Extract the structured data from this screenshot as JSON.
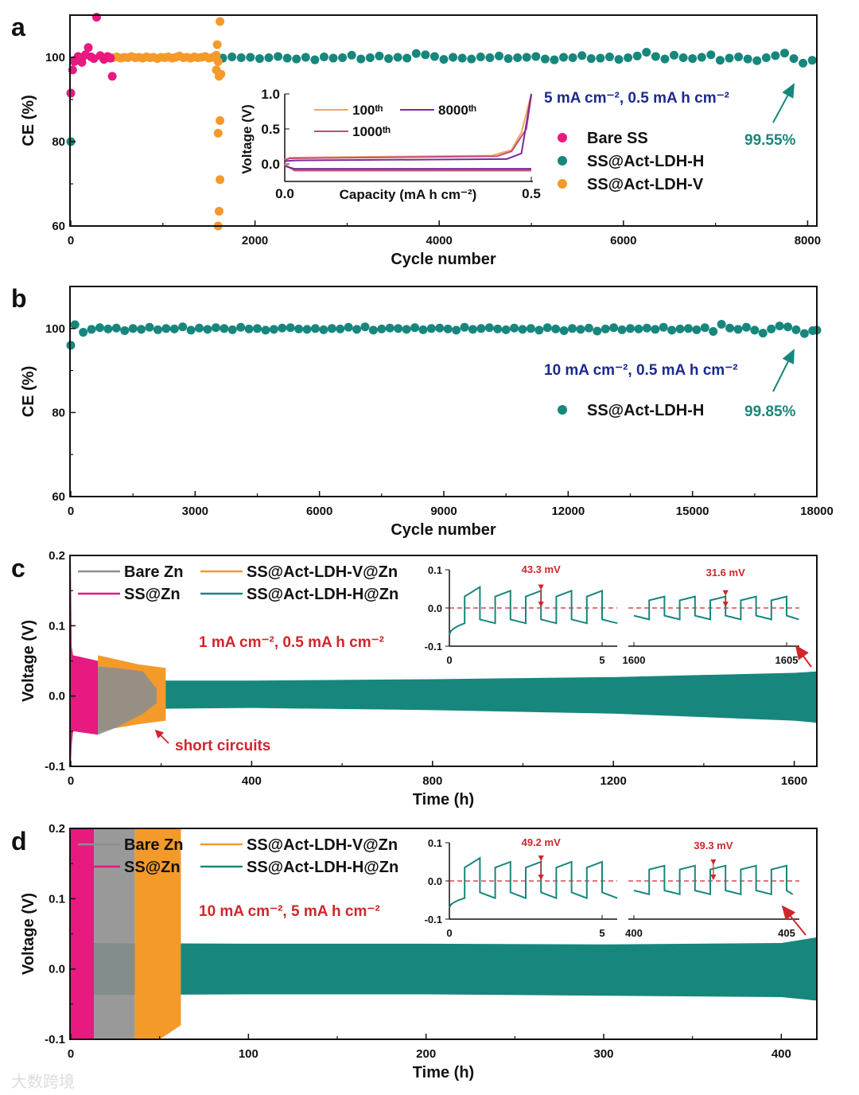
{
  "colors": {
    "teal": "#17877d",
    "pink": "#e8197f",
    "orange": "#f39a2b",
    "gray": "#8e8e8e",
    "navy": "#1b2a8c",
    "red": "#d0262c",
    "purple": "#7b2a9c",
    "rose": "#c0507a",
    "lightorange": "#f0a860"
  },
  "watermark": "大数跨境",
  "chart_data": [
    {
      "panel": "a",
      "type": "scatter",
      "xlabel": "Cycle number",
      "ylabel": "CE (%)",
      "xlim": [
        0,
        8100
      ],
      "ylim": [
        60,
        110
      ],
      "xticks": [
        0,
        2000,
        4000,
        6000,
        8000
      ],
      "yticks": [
        60,
        80,
        100
      ],
      "condition": "5 mA cm⁻², 0.5 mA h cm⁻²",
      "value_label": "99.55%",
      "series": [
        {
          "name": "SS@Act-LDH-H",
          "color": "teal",
          "points": [
            [
              0,
              80
            ],
            [
              30,
              99.2
            ],
            [
              120,
              99.6
            ]
          ],
          "x_start": 1650,
          "x_step": 100,
          "y": [
            99.8,
            100.1,
            99.9,
            100.0,
            99.7,
            99.9,
            100.2,
            99.8,
            99.6,
            100.0,
            99.4,
            100.1,
            99.8,
            99.9,
            100.5,
            99.6,
            99.9,
            100.3,
            99.7,
            100.0,
            99.8,
            100.9,
            100.6,
            100.2,
            99.5,
            100.0,
            99.8,
            99.6,
            100.1,
            99.9,
            100.3,
            99.7,
            99.9,
            100.0,
            100.2,
            99.6,
            99.4,
            100.0,
            99.9,
            100.4,
            99.7,
            99.8,
            100.1,
            99.5,
            99.9,
            100.3,
            101.2,
            100.2,
            99.6,
            100.5,
            99.9,
            99.7,
            100.0,
            100.6,
            99.3,
            99.8,
            100.1,
            99.6,
            99.2,
            99.9,
            100.4,
            101.0,
            99.7,
            98.6,
            99.3
          ]
        },
        {
          "name": "SS@Act-LDH-V",
          "color": "orange",
          "points": [
            [
              1590,
              103
            ],
            [
              1620,
              108.5
            ],
            [
              1600,
              99
            ],
            [
              1580,
              97
            ],
            [
              1610,
              95.5
            ],
            [
              1630,
              96
            ],
            [
              1620,
              85
            ],
            [
              1600,
              82
            ],
            [
              1620,
              71
            ],
            [
              1610,
              63.5
            ],
            [
              1600,
              60
            ]
          ],
          "x_start": 380,
          "x_step": 40,
          "y": [
            99.8,
            100.0,
            99.9,
            100.1,
            99.8,
            100.0,
            99.9,
            100.2,
            99.9,
            100.0,
            99.8,
            100.1,
            99.9,
            100.0,
            99.7,
            100.0,
            99.9,
            100.1,
            99.8,
            100.0,
            100.3,
            99.9,
            100.0,
            99.8,
            100.1,
            99.9,
            100.0,
            100.2,
            99.8,
            100.0,
            100.5
          ]
        },
        {
          "name": "Bare SS",
          "color": "pink",
          "points": [
            [
              0,
              91.5
            ],
            [
              20,
              97
            ],
            [
              40,
              99
            ],
            [
              80,
              100.2
            ],
            [
              120,
              98.8
            ],
            [
              160,
              100.6
            ],
            [
              190,
              102.3
            ],
            [
              220,
              100.1
            ],
            [
              250,
              99.7
            ],
            [
              280,
              109.5
            ],
            [
              320,
              100.4
            ],
            [
              360,
              99.5
            ],
            [
              400,
              100.2
            ],
            [
              430,
              99.8
            ],
            [
              450,
              95.5
            ]
          ],
          "x_start": 0,
          "x_step": 0,
          "y": []
        }
      ],
      "legend_order": [
        2,
        0,
        1
      ],
      "inset": {
        "xlabel": "Capacity (mA h cm⁻²)",
        "ylabel": "Voltage (V)",
        "xlim": [
          0,
          0.5
        ],
        "ylim": [
          -0.25,
          1.0
        ],
        "xticks": [
          "0.0",
          "0.5"
        ],
        "yticks": [
          "0.0",
          "0.5",
          "1.0"
        ],
        "series": [
          {
            "name": "100ᵗʰ",
            "color": "lightorange",
            "charge": {
              "x": [
                0,
                0.01,
                0.42,
                0.46,
                0.48,
                0.5
              ],
              "y": [
                0.06,
                0.09,
                0.12,
                0.2,
                0.45,
                1.0
              ]
            },
            "discharge": {
              "x": [
                0,
                0.02,
                0.5
              ],
              "y": [
                0.0,
                -0.1,
                -0.1
              ]
            }
          },
          {
            "name": "1000ᵗʰ",
            "color": "rose",
            "charge": {
              "x": [
                0,
                0.01,
                0.43,
                0.46,
                0.49,
                0.5
              ],
              "y": [
                0.05,
                0.08,
                0.11,
                0.18,
                0.5,
                0.98
              ]
            },
            "discharge": {
              "x": [
                0,
                0.02,
                0.5
              ],
              "y": [
                -0.02,
                -0.09,
                -0.09
              ]
            }
          },
          {
            "name": "8000ᵗʰ",
            "color": "purple",
            "charge": {
              "x": [
                0,
                0.02,
                0.45,
                0.48,
                0.5
              ],
              "y": [
                0.04,
                0.05,
                0.07,
                0.15,
                1.0
              ]
            },
            "discharge": {
              "x": [
                0,
                0.02,
                0.5
              ],
              "y": [
                -0.03,
                -0.07,
                -0.07
              ]
            }
          }
        ]
      }
    },
    {
      "panel": "b",
      "type": "scatter",
      "xlabel": "Cycle number",
      "ylabel": "CE (%)",
      "xlim": [
        0,
        18000
      ],
      "ylim": [
        60,
        110
      ],
      "xticks": [
        0,
        3000,
        6000,
        9000,
        12000,
        15000,
        18000
      ],
      "yticks": [
        60,
        80,
        100
      ],
      "condition": "10 mA cm⁻², 0.5 mA h cm⁻²",
      "value_label": "99.85%",
      "series": [
        {
          "name": "SS@Act-LDH-H",
          "color": "teal",
          "points": [
            [
              0,
              96
            ],
            [
              18000,
              99.6
            ]
          ],
          "x_start": 100,
          "x_step": 200,
          "y": [
            100.9,
            99.1,
            99.8,
            100.2,
            99.9,
            100.1,
            99.5,
            100.0,
            99.8,
            100.3,
            99.7,
            100.0,
            99.9,
            100.4,
            99.6,
            100.1,
            99.8,
            100.2,
            100.0,
            99.7,
            100.3,
            99.9,
            100.0,
            99.6,
            99.8,
            100.1,
            100.2,
            99.9,
            99.8,
            100.0,
            99.7,
            100.0,
            99.9,
            100.3,
            99.8,
            100.4,
            99.6,
            99.9,
            100.1,
            100.0,
            99.8,
            100.2,
            99.7,
            100.0,
            100.1,
            99.9,
            99.6,
            100.3,
            99.8,
            100.0,
            100.2,
            99.9,
            99.7,
            100.1,
            99.8,
            100.0,
            99.6,
            100.2,
            99.9,
            99.5,
            100.0,
            99.8,
            100.1,
            99.4,
            99.9,
            100.2,
            99.7,
            100.0,
            99.9,
            100.1,
            99.8,
            100.3,
            99.6,
            99.9,
            100.0,
            99.7,
            100.2,
            99.3,
            101.0,
            100.1,
            99.8,
            100.3,
            99.6,
            98.9,
            99.9,
            100.6,
            100.4,
            99.7,
            98.8,
            99.5
          ]
        }
      ],
      "legend_order": [
        0
      ]
    },
    {
      "panel": "c",
      "type": "area",
      "xlabel": "Time (h)",
      "ylabel": "Voltage (V)",
      "xlim": [
        0,
        1650
      ],
      "ylim": [
        -0.1,
        0.2
      ],
      "xticks": [
        0,
        400,
        800,
        1200,
        1600
      ],
      "yticks": [
        "-0.1",
        "0.0",
        "0.1",
        "0.2"
      ],
      "condition": "1 mA cm⁻², 0.5 mA h cm⁻²",
      "annotation": "short circuits",
      "series": [
        {
          "name": "SS@Act-LDH-H@Zn",
          "color": "teal",
          "x": [
            0,
            200,
            400,
            800,
            1200,
            1600,
            1650
          ],
          "upper": [
            0.025,
            0.022,
            0.022,
            0.024,
            0.027,
            0.033,
            0.035
          ],
          "lower": [
            -0.025,
            -0.018,
            -0.017,
            -0.02,
            -0.025,
            -0.035,
            -0.038
          ]
        },
        {
          "name": "SS@Act-LDH-V@Zn",
          "color": "orange",
          "x": [
            60,
            150,
            210
          ],
          "upper": [
            0.058,
            0.045,
            0.04
          ],
          "lower": [
            -0.05,
            -0.04,
            -0.035
          ]
        },
        {
          "name": "Bare Zn",
          "color": "gray",
          "x": [
            60,
            100,
            160,
            190
          ],
          "upper": [
            0.042,
            0.04,
            0.035,
            0.01
          ],
          "lower": [
            -0.055,
            -0.045,
            -0.025,
            -0.01
          ]
        },
        {
          "name": "SS@Zn",
          "color": "pink",
          "x": [
            0,
            2,
            5,
            60
          ],
          "upper": [
            0.2,
            0.07,
            0.058,
            0.05
          ],
          "lower": [
            -0.1,
            -0.07,
            -0.05,
            -0.055
          ]
        }
      ],
      "legend": [
        {
          "name": "Bare Zn",
          "color": "gray"
        },
        {
          "name": "SS@Zn",
          "color": "pink"
        },
        {
          "name": "SS@Act-LDH-V@Zn",
          "color": "orange"
        },
        {
          "name": "SS@Act-LDH-H@Zn",
          "color": "teal"
        }
      ],
      "inset": {
        "yticks": [
          "0.1",
          "0.0",
          "-0.1"
        ],
        "left": {
          "xlim": [
            0,
            5
          ],
          "end": 5.5,
          "ticks": [
            "0",
            "5"
          ],
          "charge_v": [
            0.03,
            0.045
          ],
          "first_charge_peak": 0.055,
          "discharge_v": [
            -0.03,
            -0.04
          ],
          "label": "43.3 mV",
          "marker_t": 3.0
        },
        "right": {
          "xlim": [
            1600,
            1605
          ],
          "end": 1605.4,
          "ticks": [
            "1600",
            "1605"
          ],
          "charge_v": [
            0.02,
            0.03
          ],
          "discharge_v": [
            -0.02,
            -0.03
          ],
          "label": "31.6 mV",
          "marker_t": 1603.0
        }
      }
    },
    {
      "panel": "d",
      "type": "area",
      "xlabel": "Time (h)",
      "ylabel": "Voltage (V)",
      "xlim": [
        0,
        420
      ],
      "ylim": [
        -0.1,
        0.2
      ],
      "xticks": [
        0,
        100,
        200,
        300,
        400
      ],
      "yticks": [
        "-0.1",
        "0.0",
        "0.1",
        "0.2"
      ],
      "condition": "10 mA cm⁻², 5 mA h cm⁻²",
      "series": [
        {
          "name": "SS@Act-LDH-H@Zn",
          "color": "teal",
          "x": [
            0,
            100,
            200,
            300,
            400,
            420
          ],
          "upper": [
            0.037,
            0.036,
            0.036,
            0.035,
            0.037,
            0.045
          ],
          "lower": [
            -0.037,
            -0.036,
            -0.036,
            -0.038,
            -0.04,
            -0.045
          ]
        },
        {
          "name": "SS@Zn",
          "color": "pink",
          "x": [
            0,
            13
          ],
          "upper": [
            0.2,
            0.2
          ],
          "lower": [
            -0.1,
            -0.1
          ]
        },
        {
          "name": "Bare Zn",
          "color": "gray",
          "x": [
            13,
            36
          ],
          "upper": [
            0.2,
            0.2
          ],
          "lower": [
            -0.1,
            -0.1
          ]
        },
        {
          "name": "SS@Act-LDH-V@Zn",
          "color": "orange",
          "x": [
            36,
            50,
            62
          ],
          "upper": [
            0.2,
            0.2,
            0.2
          ],
          "lower": [
            -0.1,
            -0.1,
            -0.08
          ]
        }
      ],
      "legend": [
        {
          "name": "Bare Zn",
          "color": "gray"
        },
        {
          "name": "SS@Zn",
          "color": "pink"
        },
        {
          "name": "SS@Act-LDH-V@Zn",
          "color": "orange"
        },
        {
          "name": "SS@Act-LDH-H@Zn",
          "color": "teal"
        }
      ],
      "inset": {
        "yticks": [
          "0.1",
          "0.0",
          "-0.1"
        ],
        "left": {
          "xlim": [
            0,
            5
          ],
          "end": 5.5,
          "ticks": [
            "0",
            "5"
          ],
          "charge_v": [
            0.035,
            0.05
          ],
          "first_charge_peak": 0.06,
          "discharge_v": [
            -0.03,
            -0.045
          ],
          "label": "49.2 mV",
          "marker_t": 3.0
        },
        "right": {
          "xlim": [
            400,
            405
          ],
          "end": 405.2,
          "ticks": [
            "400",
            "405"
          ],
          "charge_v": [
            0.03,
            0.04
          ],
          "discharge_v": [
            -0.025,
            -0.035
          ],
          "label": "39.3 mV",
          "marker_t": 402.6
        }
      }
    }
  ]
}
